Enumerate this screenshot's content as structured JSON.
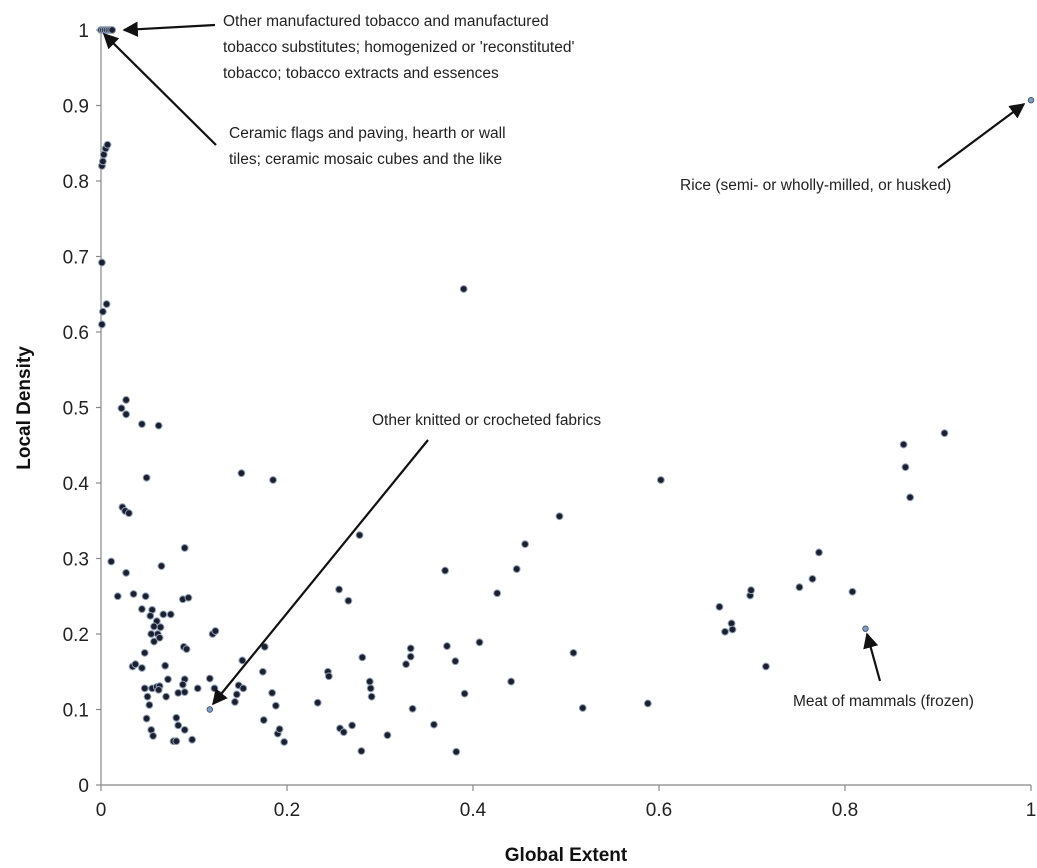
{
  "chart_data": {
    "type": "scatter",
    "title": "",
    "xlabel": "Global Extent",
    "ylabel": "Local Density",
    "xlim": [
      0,
      1
    ],
    "ylim": [
      0,
      1
    ],
    "x_ticks": [
      "0",
      "0.2",
      "0.4",
      "0.6",
      "0.8",
      "1"
    ],
    "y_ticks": [
      "0",
      "0.1",
      "0.2",
      "0.3",
      "0.4",
      "0.5",
      "0.6",
      "0.7",
      "0.8",
      "0.9",
      "1"
    ],
    "grid": false,
    "legend": "none",
    "series": [
      {
        "points": [
          [
            0.0,
            1.0
          ],
          [
            0.002,
            1.0
          ],
          [
            0.004,
            1.0
          ],
          [
            0.006,
            1.0
          ],
          [
            0.008,
            1.0
          ],
          [
            0.01,
            1.0
          ],
          [
            0.012,
            1.0
          ],
          [
            0.001,
            0.82
          ],
          [
            0.002,
            0.826
          ],
          [
            0.003,
            0.835
          ],
          [
            0.005,
            0.843
          ],
          [
            0.007,
            0.848
          ],
          [
            0.001,
            0.692
          ],
          [
            0.002,
            0.627
          ],
          [
            0.001,
            0.61
          ],
          [
            0.006,
            0.637
          ],
          [
            0.027,
            0.51
          ],
          [
            0.022,
            0.499
          ],
          [
            0.027,
            0.491
          ],
          [
            0.044,
            0.478
          ],
          [
            0.062,
            0.476
          ],
          [
            0.049,
            0.407
          ],
          [
            0.023,
            0.368
          ],
          [
            0.026,
            0.363
          ],
          [
            0.03,
            0.36
          ],
          [
            0.011,
            0.296
          ],
          [
            0.027,
            0.281
          ],
          [
            0.065,
            0.29
          ],
          [
            0.018,
            0.25
          ],
          [
            0.035,
            0.253
          ],
          [
            0.048,
            0.25
          ],
          [
            0.044,
            0.233
          ],
          [
            0.055,
            0.232
          ],
          [
            0.053,
            0.224
          ],
          [
            0.06,
            0.217
          ],
          [
            0.057,
            0.21
          ],
          [
            0.061,
            0.2
          ],
          [
            0.054,
            0.2
          ],
          [
            0.063,
            0.195
          ],
          [
            0.057,
            0.19
          ],
          [
            0.064,
            0.209
          ],
          [
            0.075,
            0.226
          ],
          [
            0.067,
            0.226
          ],
          [
            0.088,
            0.246
          ],
          [
            0.094,
            0.248
          ],
          [
            0.09,
            0.314
          ],
          [
            0.034,
            0.157
          ],
          [
            0.037,
            0.16
          ],
          [
            0.047,
            0.175
          ],
          [
            0.044,
            0.155
          ],
          [
            0.047,
            0.128
          ],
          [
            0.055,
            0.128
          ],
          [
            0.06,
            0.13
          ],
          [
            0.063,
            0.131
          ],
          [
            0.062,
            0.126
          ],
          [
            0.069,
            0.158
          ],
          [
            0.07,
            0.117
          ],
          [
            0.05,
            0.117
          ],
          [
            0.052,
            0.106
          ],
          [
            0.049,
            0.088
          ],
          [
            0.054,
            0.073
          ],
          [
            0.056,
            0.065
          ],
          [
            0.072,
            0.14
          ],
          [
            0.083,
            0.122
          ],
          [
            0.09,
            0.14
          ],
          [
            0.088,
            0.133
          ],
          [
            0.09,
            0.123
          ],
          [
            0.089,
            0.183
          ],
          [
            0.092,
            0.18
          ],
          [
            0.081,
            0.089
          ],
          [
            0.083,
            0.079
          ],
          [
            0.09,
            0.073
          ],
          [
            0.078,
            0.058
          ],
          [
            0.081,
            0.058
          ],
          [
            0.098,
            0.06
          ],
          [
            0.104,
            0.128
          ],
          [
            0.117,
            0.141
          ],
          [
            0.122,
            0.128
          ],
          [
            0.126,
            0.12
          ],
          [
            0.12,
            0.2
          ],
          [
            0.123,
            0.204
          ],
          [
            0.144,
            0.11
          ],
          [
            0.146,
            0.12
          ],
          [
            0.148,
            0.132
          ],
          [
            0.153,
            0.128
          ],
          [
            0.152,
            0.165
          ],
          [
            0.151,
            0.413
          ],
          [
            0.185,
            0.404
          ],
          [
            0.174,
            0.15
          ],
          [
            0.175,
            0.086
          ],
          [
            0.176,
            0.183
          ],
          [
            0.184,
            0.122
          ],
          [
            0.188,
            0.105
          ],
          [
            0.19,
            0.068
          ],
          [
            0.192,
            0.074
          ],
          [
            0.197,
            0.057
          ],
          [
            0.233,
            0.109
          ],
          [
            0.244,
            0.15
          ],
          [
            0.245,
            0.144
          ],
          [
            0.256,
            0.259
          ],
          [
            0.266,
            0.244
          ],
          [
            0.257,
            0.075
          ],
          [
            0.261,
            0.07
          ],
          [
            0.27,
            0.079
          ],
          [
            0.278,
            0.331
          ],
          [
            0.281,
            0.169
          ],
          [
            0.28,
            0.045
          ],
          [
            0.289,
            0.137
          ],
          [
            0.291,
            0.117
          ],
          [
            0.29,
            0.128
          ],
          [
            0.308,
            0.066
          ],
          [
            0.328,
            0.16
          ],
          [
            0.333,
            0.17
          ],
          [
            0.333,
            0.181
          ],
          [
            0.335,
            0.101
          ],
          [
            0.358,
            0.08
          ],
          [
            0.37,
            0.284
          ],
          [
            0.372,
            0.184
          ],
          [
            0.381,
            0.164
          ],
          [
            0.382,
            0.044
          ],
          [
            0.391,
            0.121
          ],
          [
            0.39,
            0.657
          ],
          [
            0.407,
            0.189
          ],
          [
            0.426,
            0.254
          ],
          [
            0.441,
            0.137
          ],
          [
            0.447,
            0.286
          ],
          [
            0.456,
            0.319
          ],
          [
            0.493,
            0.356
          ],
          [
            0.508,
            0.175
          ],
          [
            0.518,
            0.102
          ],
          [
            0.588,
            0.108
          ],
          [
            0.602,
            0.404
          ],
          [
            0.665,
            0.236
          ],
          [
            0.671,
            0.203
          ],
          [
            0.678,
            0.214
          ],
          [
            0.679,
            0.206
          ],
          [
            0.698,
            0.251
          ],
          [
            0.699,
            0.258
          ],
          [
            0.715,
            0.157
          ],
          [
            0.751,
            0.262
          ],
          [
            0.765,
            0.273
          ],
          [
            0.772,
            0.308
          ],
          [
            0.808,
            0.256
          ],
          [
            0.863,
            0.451
          ],
          [
            0.865,
            0.421
          ],
          [
            0.87,
            0.381
          ],
          [
            0.907,
            0.466
          ]
        ]
      }
    ],
    "highlighted_points": [
      [
        1.0,
        0.907
      ],
      [
        0.822,
        0.207
      ],
      [
        0.117,
        0.1
      ]
    ],
    "annotations": [
      {
        "lines": [
          "Other manufactured tobacco and manufactured",
          "tobacco substitutes; homogenized or 'reconstituted'",
          "tobacco; tobacco extracts and essences"
        ],
        "target": [
          0.012,
          1.0
        ]
      },
      {
        "lines": [
          "Ceramic flags and paving, hearth or wall",
          "tiles; ceramic mosaic cubes and the like"
        ],
        "target": [
          0.002,
          0.995
        ]
      },
      {
        "lines": [
          "Rice (semi- or wholly-milled, or husked)"
        ],
        "target": [
          1.0,
          0.907
        ]
      },
      {
        "lines": [
          "Other knitted or crocheted fabrics"
        ],
        "target": [
          0.117,
          0.1
        ]
      },
      {
        "lines": [
          "Meat of mammals (frozen)"
        ],
        "target": [
          0.822,
          0.207
        ]
      }
    ]
  }
}
